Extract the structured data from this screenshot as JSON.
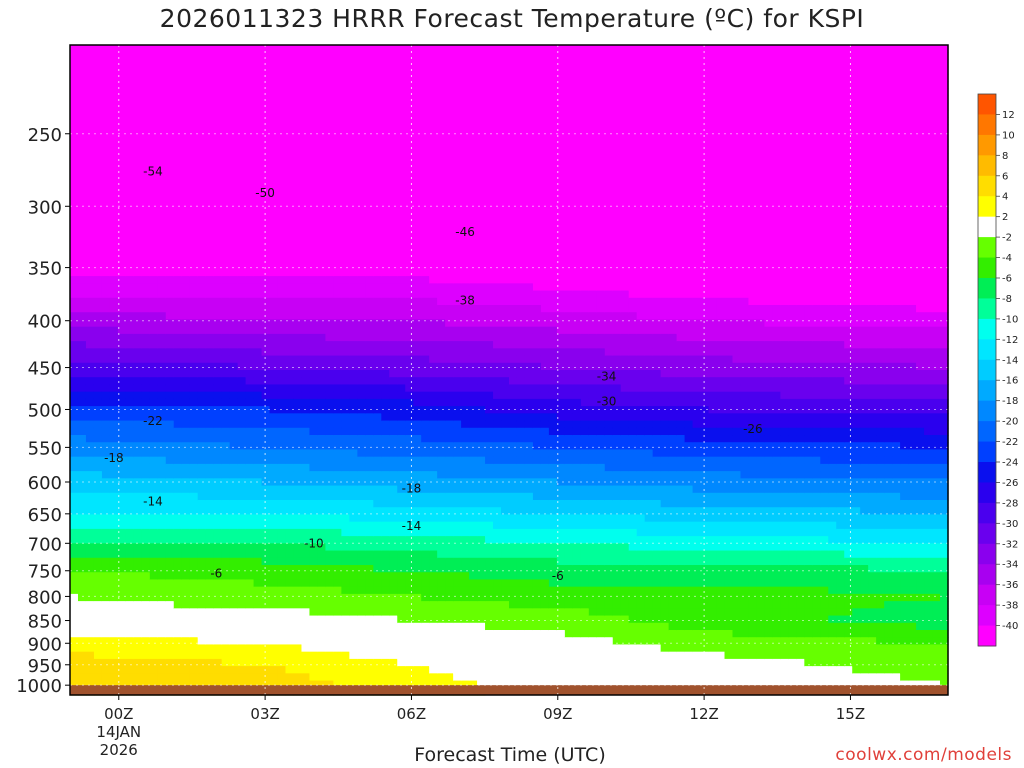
{
  "chart_data": {
    "type": "heatmap",
    "title": "2026011323 HRRR Forecast Temperature (ºC) for KSPI",
    "xlabel": "Forecast Time (UTC)",
    "ylabel": "",
    "x_ticks": [
      "00Z",
      "03Z",
      "06Z",
      "09Z",
      "12Z",
      "15Z"
    ],
    "x_tick_values": [
      0,
      3,
      6,
      9,
      12,
      15
    ],
    "x_date_lines": [
      "14JAN",
      "2026"
    ],
    "xlim": [
      -1,
      17
    ],
    "y_ticks": [
      250,
      300,
      350,
      400,
      450,
      500,
      550,
      600,
      650,
      700,
      750,
      800,
      850,
      900,
      950,
      1000
    ],
    "ylim": [
      1025,
      200
    ],
    "y_scale": "log-pressure",
    "colorbar": {
      "levels": [
        -40,
        -38,
        -36,
        -34,
        -32,
        -30,
        -28,
        -26,
        -24,
        -22,
        -20,
        -18,
        -16,
        -14,
        -12,
        -10,
        -8,
        -6,
        -4,
        -2,
        2,
        4,
        6,
        8,
        10,
        12
      ],
      "colors": [
        "#ff00ff",
        "#dd00ff",
        "#c800f5",
        "#a800f0",
        "#8a00ee",
        "#6a00ee",
        "#4a00ee",
        "#2a00ee",
        "#0a10ee",
        "#0040ff",
        "#0066ff",
        "#0088ff",
        "#00aaff",
        "#00ccff",
        "#00e6ff",
        "#00ffee",
        "#00ff99",
        "#00ee55",
        "#33ee00",
        "#66ff00",
        "#ffffff",
        "#ffff00",
        "#ffdd00",
        "#ffbb00",
        "#ff9900",
        "#ff7700",
        "#ff5500"
      ]
    },
    "temperature_field": {
      "times": [
        -1,
        3,
        6,
        9,
        12,
        17
      ],
      "profiles": [
        {
          "t": -1,
          "p": [
            1000,
            950,
            900,
            850,
            800,
            750,
            700,
            650,
            600,
            550,
            500,
            450,
            400,
            350,
            300,
            250,
            200
          ],
          "temp": [
            6,
            5,
            3,
            -1,
            -2,
            -4,
            -8,
            -12,
            -15,
            -19,
            -23,
            -29,
            -35,
            -41,
            -49,
            -55,
            -57
          ]
        },
        {
          "t": 3,
          "p": [
            1000,
            950,
            900,
            850,
            800,
            750,
            700,
            650,
            600,
            550,
            500,
            450,
            400,
            350,
            300,
            250,
            200
          ],
          "temp": [
            5,
            4,
            2,
            -1,
            -3,
            -5,
            -8,
            -12,
            -16,
            -20,
            -24,
            -30,
            -36,
            -41,
            -49,
            -55,
            -56
          ]
        },
        {
          "t": 6,
          "p": [
            1000,
            950,
            900,
            850,
            800,
            750,
            700,
            650,
            600,
            550,
            500,
            450,
            400,
            350,
            300,
            250,
            200
          ],
          "temp": [
            3,
            2,
            0,
            -2,
            -4,
            -6,
            -9,
            -13,
            -17,
            -21,
            -25,
            -31,
            -36,
            -41,
            -48,
            -54,
            -56
          ]
        },
        {
          "t": 9,
          "p": [
            1000,
            950,
            900,
            850,
            800,
            750,
            700,
            650,
            600,
            550,
            500,
            450,
            400,
            350,
            300,
            250,
            200
          ],
          "temp": [
            1,
            0,
            -1,
            -3,
            -5,
            -7,
            -10,
            -14,
            -18,
            -22,
            -27,
            -32,
            -37,
            -42,
            -47,
            -53,
            -56
          ]
        },
        {
          "t": 12,
          "p": [
            1000,
            950,
            900,
            850,
            800,
            750,
            700,
            650,
            600,
            550,
            500,
            450,
            400,
            350,
            300,
            250,
            200
          ],
          "temp": [
            0,
            -1,
            -3,
            -5,
            -5,
            -7,
            -11,
            -15,
            -19,
            -23,
            -28,
            -33,
            -38,
            -43,
            -47,
            -52,
            -55
          ]
        },
        {
          "t": 17,
          "p": [
            1000,
            950,
            900,
            850,
            800,
            750,
            700,
            650,
            600,
            550,
            500,
            450,
            400,
            350,
            300,
            250,
            200
          ],
          "temp": [
            -2,
            -3,
            -4,
            -7,
            -6,
            -8,
            -12,
            -16,
            -20,
            -24,
            -29,
            -34,
            -39,
            -44,
            -48,
            -52,
            -55
          ]
        }
      ]
    },
    "contour_labels": [
      {
        "t": 0.7,
        "p": 275,
        "text": "-54"
      },
      {
        "t": 3.0,
        "p": 290,
        "text": "-50"
      },
      {
        "t": 7.1,
        "p": 320,
        "text": "-46"
      },
      {
        "t": 7.1,
        "p": 380,
        "text": "-38"
      },
      {
        "t": 10.0,
        "p": 460,
        "text": "-34"
      },
      {
        "t": 10.0,
        "p": 490,
        "text": "-30"
      },
      {
        "t": 13.0,
        "p": 525,
        "text": "-26"
      },
      {
        "t": 0.7,
        "p": 515,
        "text": "-22"
      },
      {
        "t": -0.1,
        "p": 565,
        "text": "-18"
      },
      {
        "t": 6.0,
        "p": 610,
        "text": "-18"
      },
      {
        "t": 0.7,
        "p": 630,
        "text": "-14"
      },
      {
        "t": 6.0,
        "p": 670,
        "text": "-14"
      },
      {
        "t": 4.0,
        "p": 700,
        "text": "-10"
      },
      {
        "t": 2.0,
        "p": 755,
        "text": "-6"
      },
      {
        "t": 9.0,
        "p": 760,
        "text": "-6"
      }
    ]
  }
}
